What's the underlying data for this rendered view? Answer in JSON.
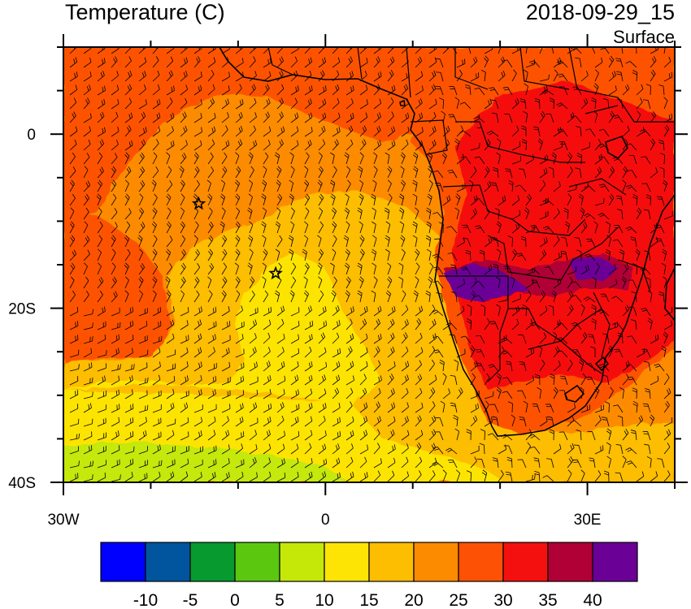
{
  "header": {
    "title": "Temperature (C)",
    "datetime": "2018-09-29_15",
    "level": "Surface"
  },
  "axes": {
    "lon_ticks": [
      {
        "value": -30,
        "label": "30W"
      },
      {
        "value": 0,
        "label": "0"
      },
      {
        "value": 30,
        "label": "30E"
      }
    ],
    "lat_ticks": [
      {
        "value": 0,
        "label": "0"
      },
      {
        "value": -20,
        "label": "20S"
      },
      {
        "value": -40,
        "label": "40S"
      }
    ],
    "lon_range": [
      -30,
      40
    ],
    "lat_range": [
      -40,
      10
    ]
  },
  "colorbar": {
    "colors": [
      "#0000ff",
      "#00559e",
      "#069a2f",
      "#5bc80f",
      "#c5e809",
      "#fde405",
      "#fdbd00",
      "#fd8b00",
      "#fd5205",
      "#f51010",
      "#b00035",
      "#6b0096"
    ],
    "labels": [
      "-10",
      "-5",
      "0",
      "5",
      "10",
      "15",
      "20",
      "25",
      "30",
      "35",
      "40"
    ]
  },
  "markers": [
    {
      "name": "station-star-1",
      "lon": -14.5,
      "lat": -8
    },
    {
      "name": "station-star-2",
      "lon": -5.7,
      "lat": -16
    }
  ],
  "icons": {
    "marker": "star-icon"
  }
}
